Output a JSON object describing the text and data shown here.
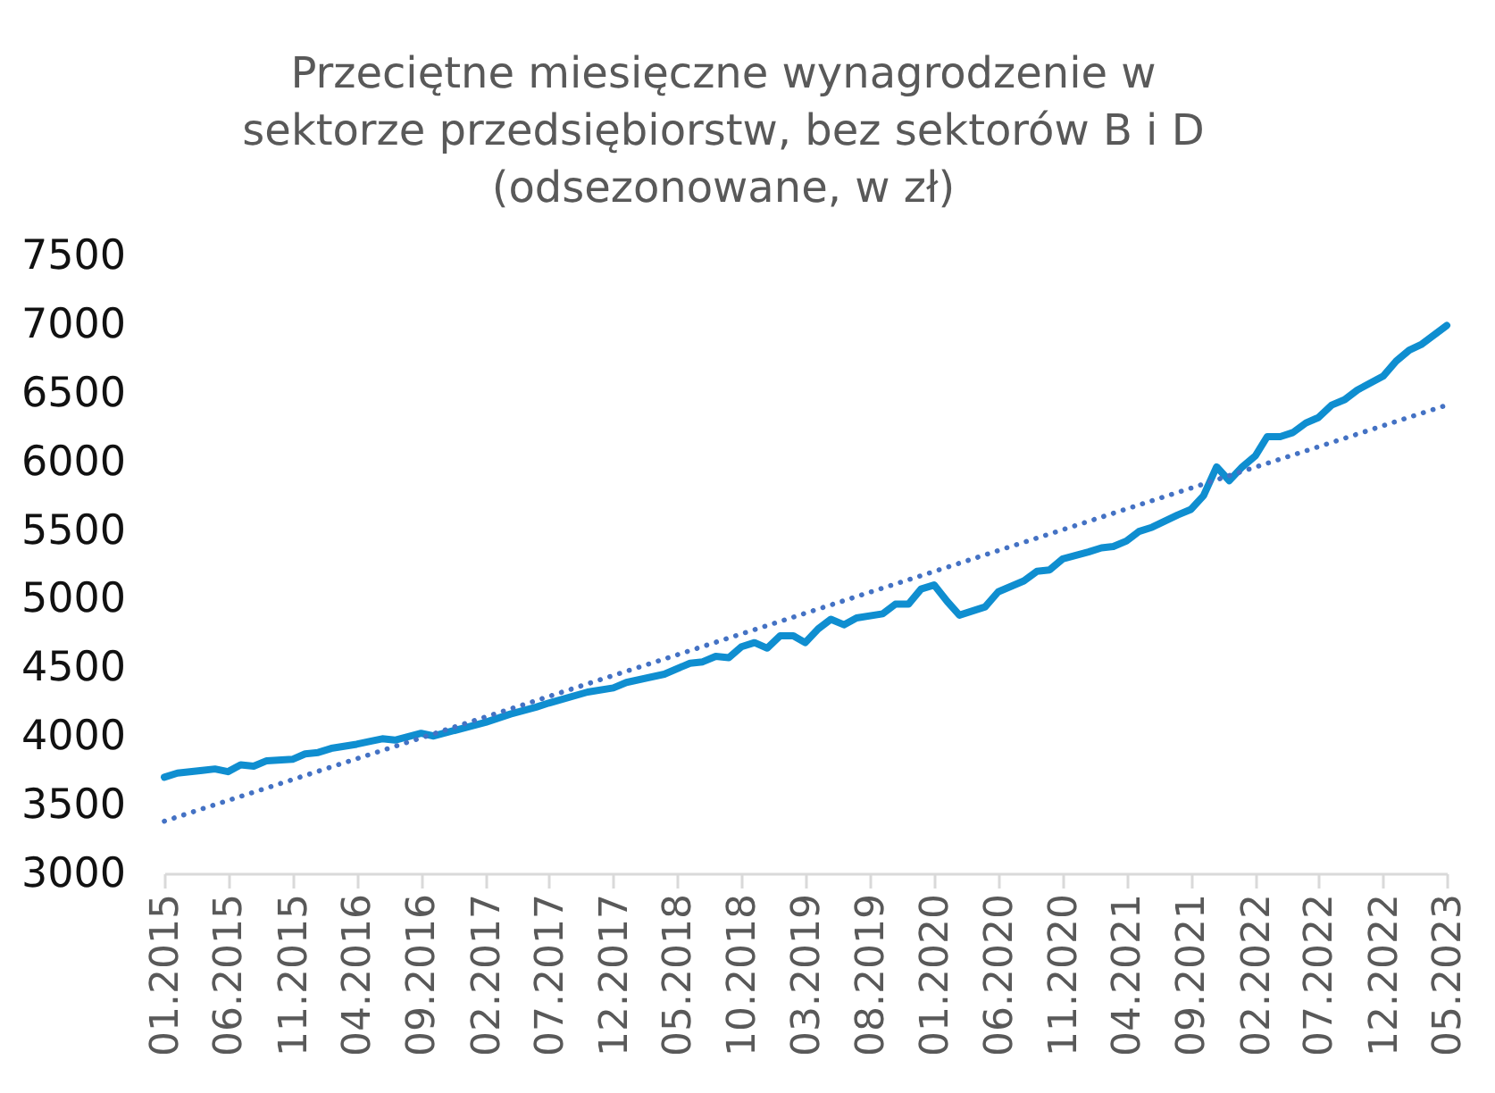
{
  "chart_data": {
    "type": "line",
    "title": "Przeciętne miesięczne wynagrodzenie w\nsektorze przedsiębiorstw, bez sektorów B i D\n(odsezonowane,  w zł)",
    "xlim": [
      "2015-01",
      "2023-05"
    ],
    "xticks": [
      {
        "value": "2015-01",
        "label": "01.2015"
      },
      {
        "value": "2015-06",
        "label": "06.2015"
      },
      {
        "value": "2015-11",
        "label": "11.2015"
      },
      {
        "value": "2016-04",
        "label": "04.2016"
      },
      {
        "value": "2016-09",
        "label": "09.2016"
      },
      {
        "value": "2017-02",
        "label": "02.2017"
      },
      {
        "value": "2017-07",
        "label": "07.2017"
      },
      {
        "value": "2017-12",
        "label": "12.2017"
      },
      {
        "value": "2018-05",
        "label": "05.2018"
      },
      {
        "value": "2018-10",
        "label": "10.2018"
      },
      {
        "value": "2019-03",
        "label": "03.2019"
      },
      {
        "value": "2019-08",
        "label": "08.2019"
      },
      {
        "value": "2020-01",
        "label": "01.2020"
      },
      {
        "value": "2020-06",
        "label": "06.2020"
      },
      {
        "value": "2020-11",
        "label": "11.2020"
      },
      {
        "value": "2021-04",
        "label": "04.2021"
      },
      {
        "value": "2021-09",
        "label": "09.2021"
      },
      {
        "value": "2022-02",
        "label": "02.2022"
      },
      {
        "value": "2022-07",
        "label": "07.2022"
      },
      {
        "value": "2022-12",
        "label": "12.2022"
      },
      {
        "value": "2023-05",
        "label": "05.2023"
      }
    ],
    "ylim": [
      3000,
      7500
    ],
    "yticks": [
      3000,
      3500,
      4000,
      4500,
      5000,
      5500,
      6000,
      6500,
      7000,
      7500
    ],
    "line_style": "solid",
    "series": [
      {
        "color": "#0F8ED0",
        "x": [
          "2015-01",
          "2015-02",
          "2015-04",
          "2015-05",
          "2015-06",
          "2015-07",
          "2015-08",
          "2015-09",
          "2015-11",
          "2015-12",
          "2016-01",
          "2016-02",
          "2016-04",
          "2016-05",
          "2016-06",
          "2016-07",
          "2016-09",
          "2016-10",
          "2016-12",
          "2017-02",
          "2017-04",
          "2017-06",
          "2017-07",
          "2017-10",
          "2017-12",
          "2018-01",
          "2018-04",
          "2018-06",
          "2018-07",
          "2018-08",
          "2018-09",
          "2018-10",
          "2018-11",
          "2018-12",
          "2019-01",
          "2019-02",
          "2019-03",
          "2019-04",
          "2019-05",
          "2019-06",
          "2019-07",
          "2019-09",
          "2019-10",
          "2019-11",
          "2019-12",
          "2020-01",
          "2020-02",
          "2020-03",
          "2020-05",
          "2020-06",
          "2020-08",
          "2020-09",
          "2020-10",
          "2020-11",
          "2021-01",
          "2021-02",
          "2021-03",
          "2021-04",
          "2021-05",
          "2021-06",
          "2021-08",
          "2021-09",
          "2021-10",
          "2021-11",
          "2021-12",
          "2022-01",
          "2022-02",
          "2022-03",
          "2022-04",
          "2022-05",
          "2022-06",
          "2022-07",
          "2022-08",
          "2022-09",
          "2022-10",
          "2022-12",
          "2023-01",
          "2023-02",
          "2023-03",
          "2023-05"
        ],
        "values": [
          3700,
          3730,
          3750,
          3760,
          3740,
          3790,
          3780,
          3820,
          3830,
          3870,
          3880,
          3910,
          3940,
          3960,
          3980,
          3970,
          4020,
          4000,
          4050,
          4100,
          4160,
          4210,
          4240,
          4320,
          4350,
          4390,
          4450,
          4530,
          4540,
          4580,
          4570,
          4650,
          4680,
          4640,
          4730,
          4730,
          4680,
          4780,
          4850,
          4810,
          4860,
          4890,
          4960,
          4960,
          5070,
          5100,
          4980,
          4880,
          4940,
          5050,
          5130,
          5200,
          5210,
          5290,
          5340,
          5370,
          5380,
          5420,
          5490,
          5520,
          5610,
          5650,
          5750,
          5960,
          5860,
          5960,
          6040,
          6180,
          6180,
          6210,
          6280,
          6320,
          6410,
          6450,
          6520,
          6620,
          6730,
          6810,
          6850,
          6990
        ]
      },
      {
        "type": "line",
        "color": "#4472C4",
        "line_style": "dotted",
        "x": [
          "2015-01",
          "2023-05"
        ],
        "values": [
          3380,
          6410
        ]
      }
    ]
  }
}
